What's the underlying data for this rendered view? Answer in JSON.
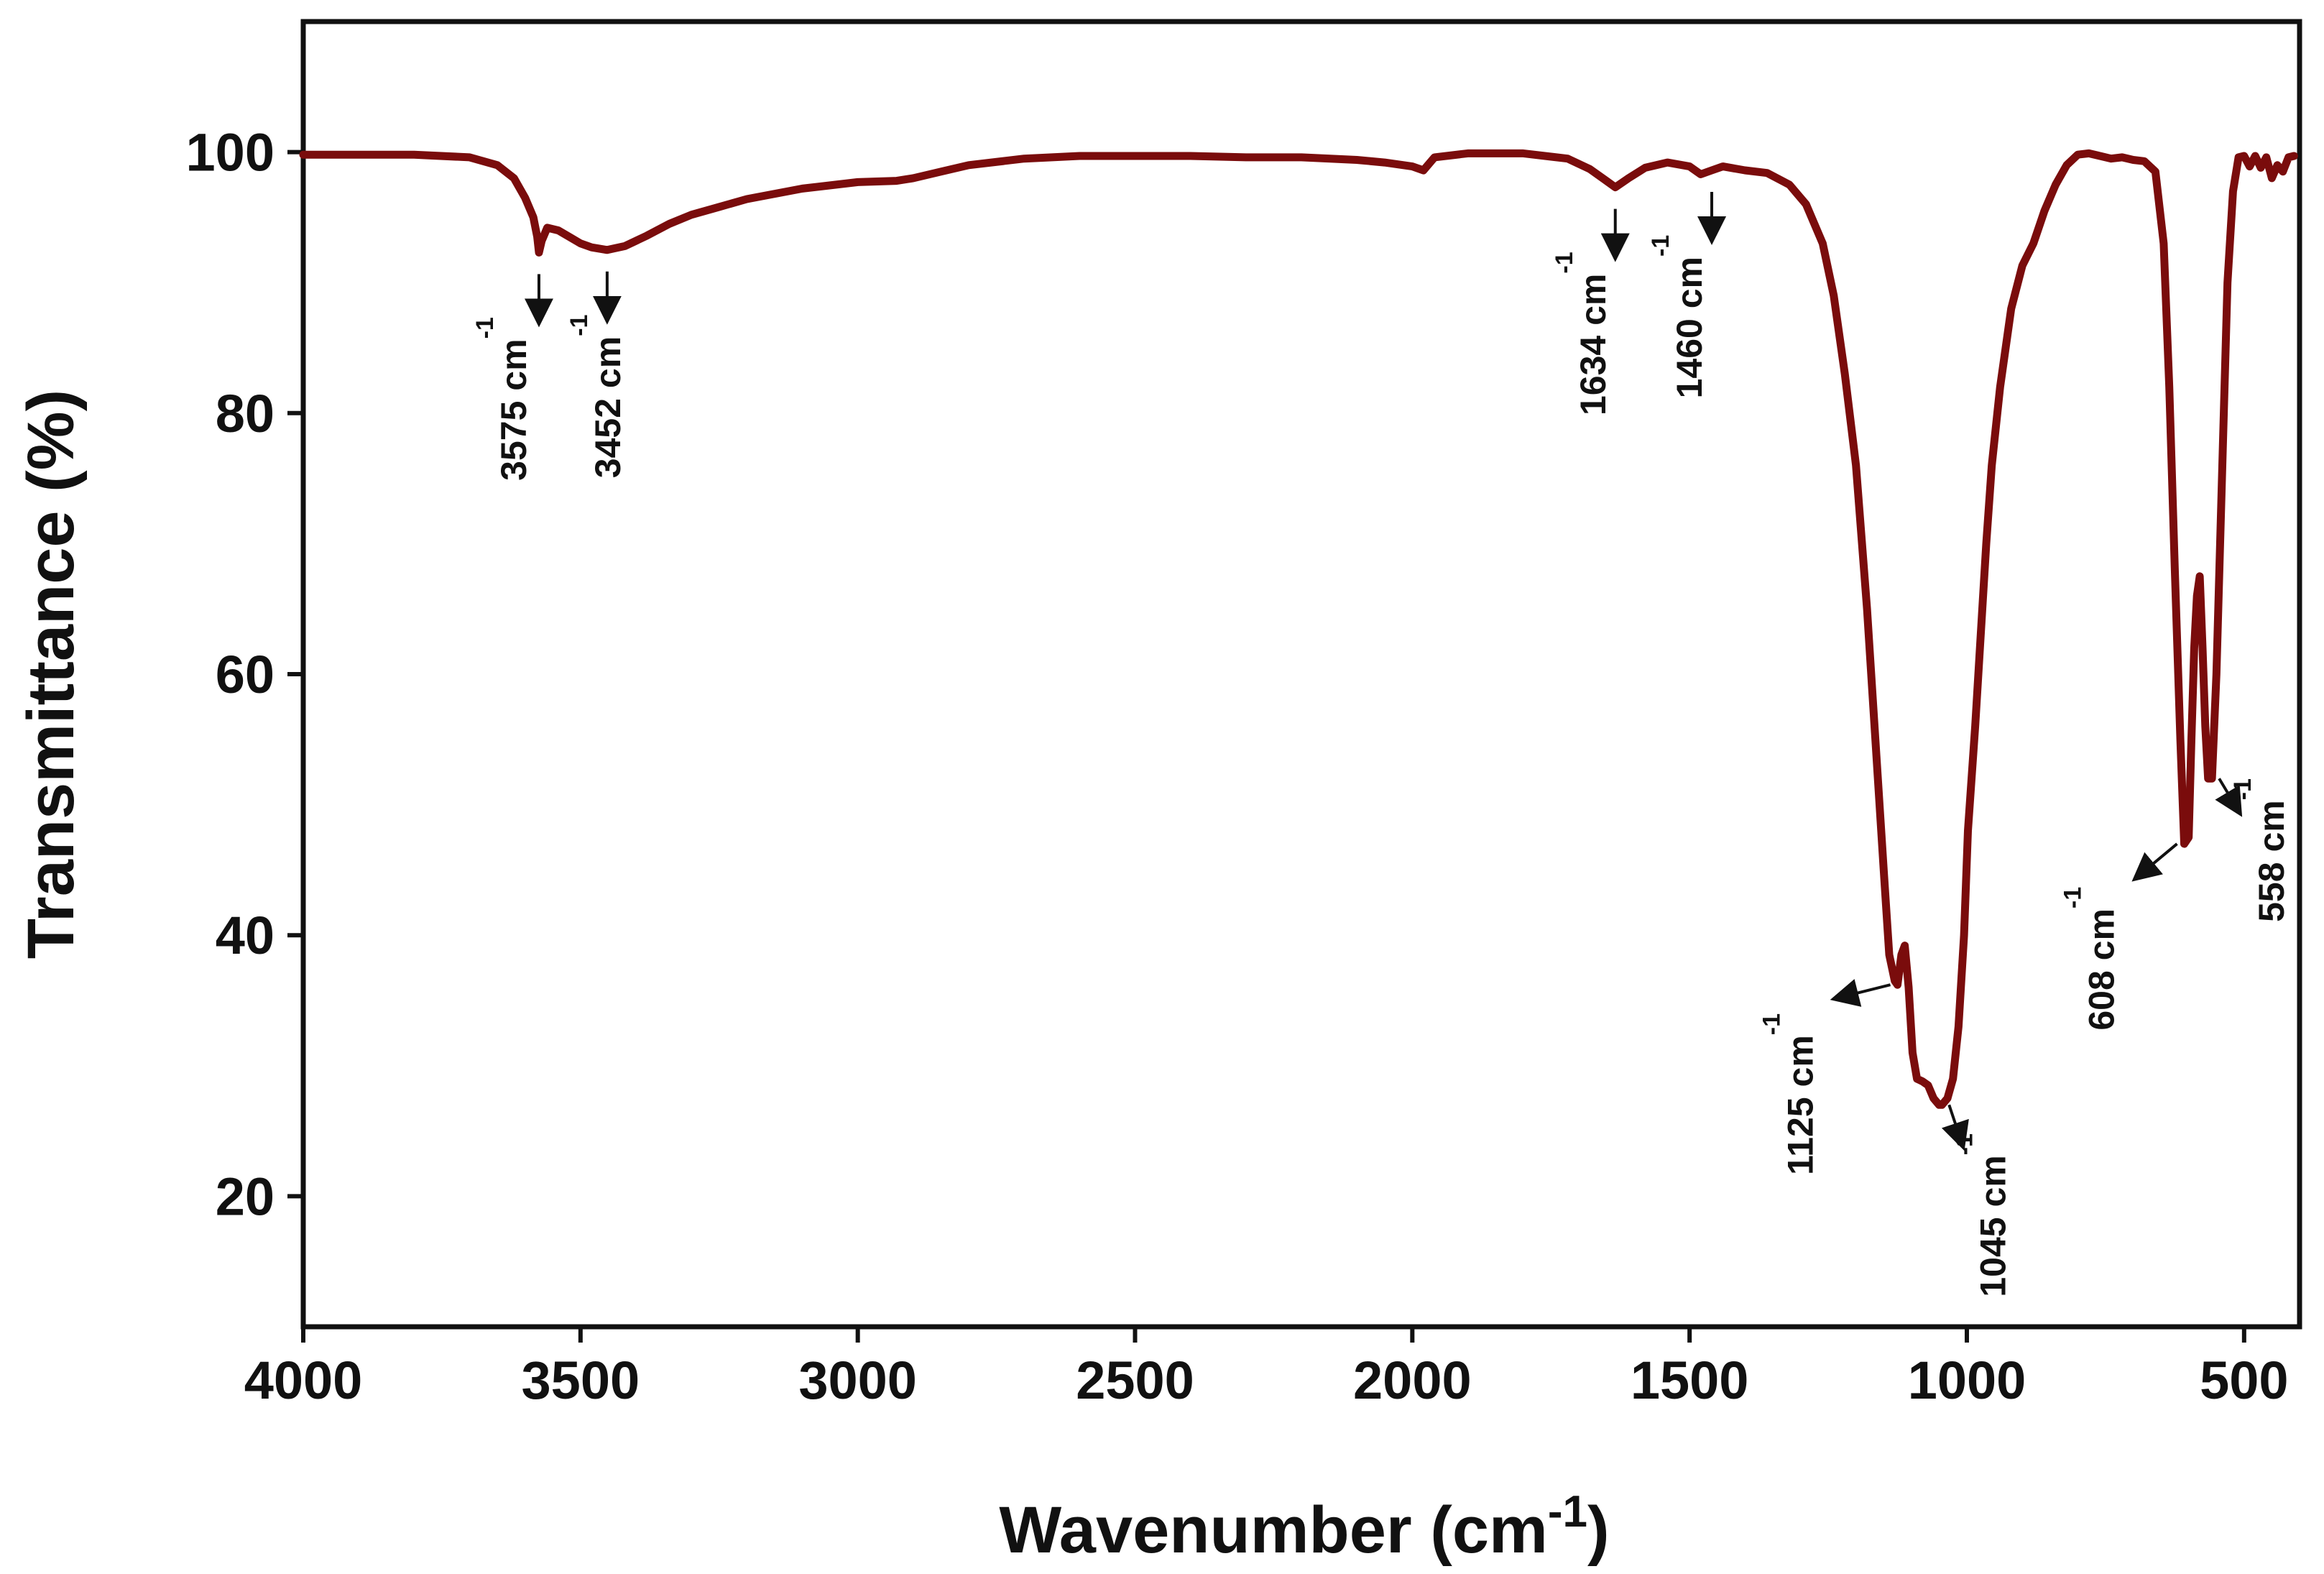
{
  "chart_data": {
    "type": "line",
    "title": "",
    "xlabel": "Wavenumber",
    "xlabel_unit_base": "cm",
    "xlabel_unit_exp": "-1",
    "ylabel": "Transmittance (%)",
    "xlim": [
      4000,
      400
    ],
    "ylim": [
      10,
      110
    ],
    "xticks": [
      4000,
      3500,
      3000,
      2500,
      2000,
      1500,
      1000,
      500
    ],
    "yticks": [
      20,
      40,
      60,
      80,
      100
    ],
    "grid": false,
    "colors": {
      "line": "#7a0c0c",
      "axis": "#111111",
      "annotation": "#111111"
    },
    "series": [
      {
        "name": "Transmittance",
        "x": [
          4000,
          3800,
          3700,
          3650,
          3620,
          3600,
          3585,
          3578,
          3575,
          3570,
          3560,
          3540,
          3520,
          3500,
          3480,
          3452,
          3420,
          3380,
          3340,
          3300,
          3250,
          3200,
          3100,
          3000,
          2930,
          2900,
          2850,
          2800,
          2700,
          2600,
          2500,
          2400,
          2300,
          2200,
          2100,
          2050,
          2000,
          1980,
          1960,
          1900,
          1800,
          1720,
          1680,
          1650,
          1634,
          1610,
          1580,
          1540,
          1500,
          1480,
          1460,
          1440,
          1400,
          1360,
          1320,
          1290,
          1260,
          1240,
          1220,
          1200,
          1180,
          1165,
          1150,
          1140,
          1130,
          1125,
          1118,
          1112,
          1105,
          1098,
          1090,
          1080,
          1070,
          1060,
          1050,
          1045,
          1035,
          1025,
          1015,
          1005,
          998,
          985,
          975,
          965,
          955,
          940,
          920,
          900,
          880,
          860,
          840,
          820,
          800,
          780,
          760,
          740,
          720,
          700,
          680,
          660,
          645,
          635,
          625,
          615,
          608,
          600,
          595,
          590,
          585,
          580,
          575,
          570,
          565,
          558,
          550,
          540,
          530,
          520,
          510,
          500,
          490,
          480,
          470,
          460,
          450,
          440,
          430,
          420,
          410
        ],
        "y": [
          99.8,
          99.8,
          99.6,
          99,
          98,
          96.5,
          95,
          93.5,
          92.3,
          93.2,
          94.2,
          94,
          93.5,
          93,
          92.7,
          92.5,
          92.8,
          93.6,
          94.5,
          95.2,
          95.8,
          96.4,
          97.2,
          97.7,
          97.8,
          98,
          98.5,
          99,
          99.5,
          99.7,
          99.7,
          99.7,
          99.6,
          99.6,
          99.4,
          99.2,
          98.9,
          98.6,
          99.6,
          99.9,
          99.9,
          99.5,
          98.7,
          97.8,
          97.3,
          98,
          98.8,
          99.2,
          98.9,
          98.3,
          98.6,
          98.9,
          98.6,
          98.4,
          97.5,
          96,
          93,
          89,
          83,
          76,
          65,
          55,
          45,
          38.5,
          36.5,
          36.2,
          38.5,
          39.2,
          36,
          31,
          29,
          28.8,
          28.5,
          27.5,
          27,
          27,
          27.5,
          29,
          33,
          40,
          48,
          56,
          63,
          70,
          76,
          82,
          88,
          91.3,
          93,
          95.5,
          97.5,
          99,
          99.8,
          99.9,
          99.7,
          99.5,
          99.6,
          99.4,
          99.3,
          98.5,
          93,
          82,
          68,
          55,
          47,
          47.5,
          55,
          62,
          66,
          67.5,
          62,
          56,
          52,
          52,
          60,
          75,
          90,
          97,
          99.6,
          99.7,
          98.9,
          99.7,
          98.8,
          99.6,
          98,
          99,
          98.5,
          99.6,
          99.7
        ]
      }
    ],
    "annotations": [
      {
        "label": "3575 cm",
        "sup": "-1",
        "x": 3575,
        "y": 92.3
      },
      {
        "label": "3452 cm",
        "sup": "-1",
        "x": 3452,
        "y": 92.5
      },
      {
        "label": "1634 cm",
        "sup": "-1",
        "x": 1634,
        "y": 97.3
      },
      {
        "label": "1460 cm",
        "sup": "-1",
        "x": 1460,
        "y": 98.6
      },
      {
        "label": "1125 cm",
        "sup": "-1",
        "x": 1125,
        "y": 36.2
      },
      {
        "label": "1045 cm",
        "sup": "-1",
        "x": 1045,
        "y": 27
      },
      {
        "label": "608 cm",
        "sup": "-1",
        "x": 608,
        "y": 47
      },
      {
        "label": "558 cm",
        "sup": "-1",
        "x": 558,
        "y": 52
      }
    ]
  }
}
